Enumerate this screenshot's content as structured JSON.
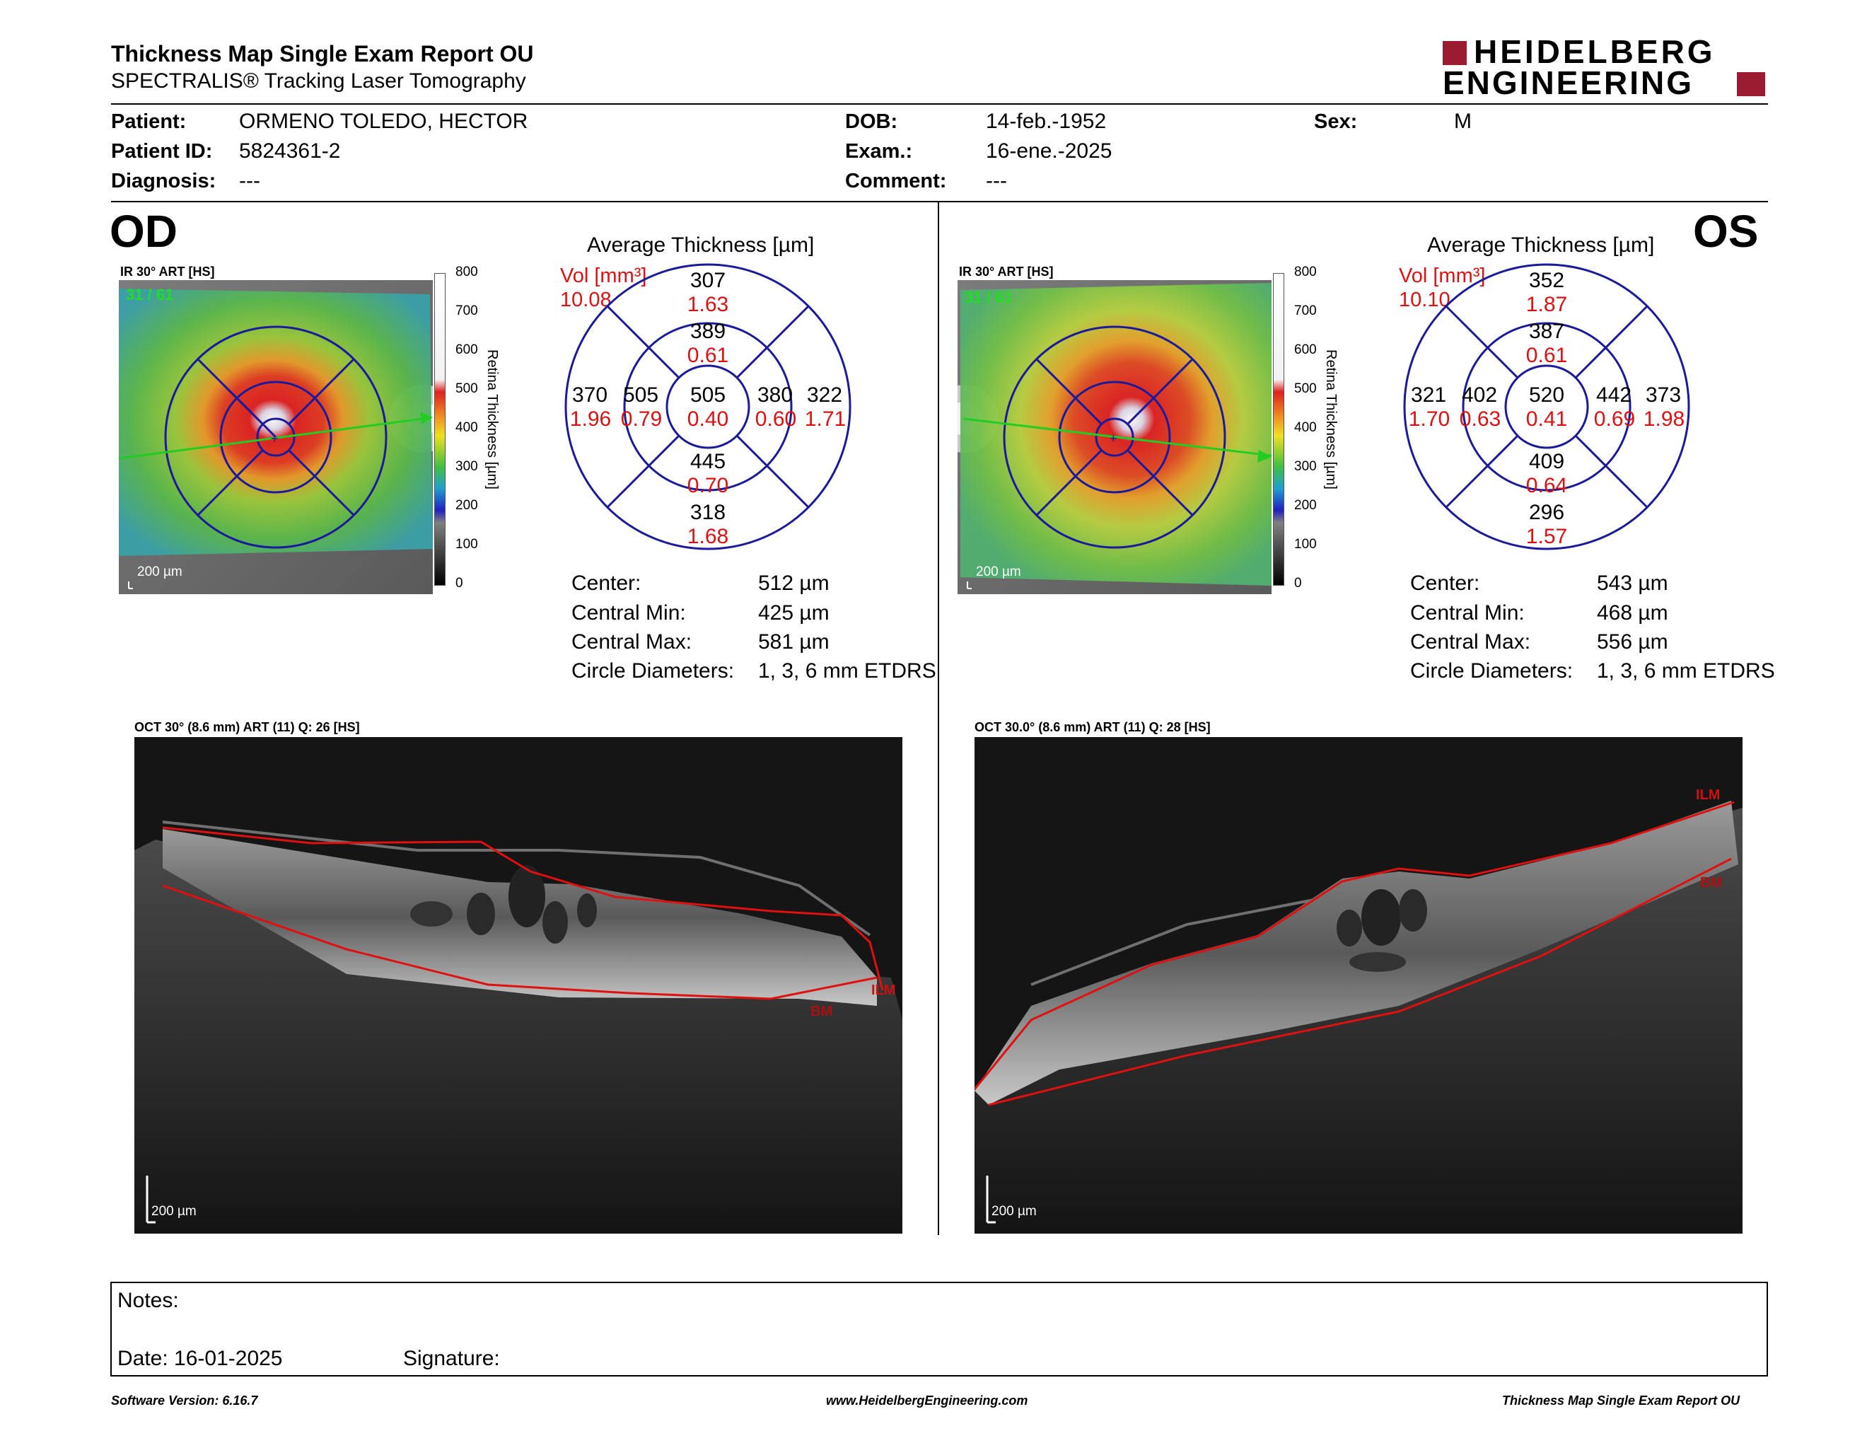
{
  "header": {
    "title": "Thickness Map Single Exam Report OU",
    "subtitle": "SPECTRALIS® Tracking Laser Tomography",
    "logo_line1": "HEIDELBERG",
    "logo_line2": "ENGINEERING",
    "logo_color": "#9b1b30"
  },
  "patient": {
    "patient_label": "Patient:",
    "patient_value": "ORMENO TOLEDO, HECTOR",
    "id_label": "Patient ID:",
    "id_value": "5824361-2",
    "diag_label": "Diagnosis:",
    "diag_value": "---",
    "dob_label": "DOB:",
    "dob_value": "14-feb.-1952",
    "exam_label": "Exam.:",
    "exam_value": "16-ene.-2025",
    "comment_label": "Comment:",
    "comment_value": "---",
    "sex_label": "Sex:",
    "sex_value": "M"
  },
  "od": {
    "eye": "OD",
    "ir_caption": "IR 30° ART [HS]",
    "art_count": "31 / 61",
    "scale": "200 µm",
    "avg_title": "Average Thickness [µm]",
    "vol_label": "Vol [mm³]",
    "vol_total": "10.08",
    "sectors": {
      "outer_sup": {
        "t": "307",
        "v": "1.63"
      },
      "inner_sup": {
        "t": "389",
        "v": "0.61"
      },
      "center": {
        "t": "505",
        "v": "0.40"
      },
      "inner_temp": {
        "t": "505",
        "v": "0.79"
      },
      "outer_temp": {
        "t": "370",
        "v": "1.96"
      },
      "inner_nasal": {
        "t": "380",
        "v": "0.60"
      },
      "outer_nasal": {
        "t": "322",
        "v": "1.71"
      },
      "inner_inf": {
        "t": "445",
        "v": "0.70"
      },
      "outer_inf": {
        "t": "318",
        "v": "1.68"
      }
    },
    "stats": [
      {
        "label": "Center:",
        "value": "512 µm"
      },
      {
        "label": "Central Min:",
        "value": "425 µm"
      },
      {
        "label": "Central Max:",
        "value": "581 µm"
      },
      {
        "label": "Circle Diameters:",
        "value": "1, 3, 6 mm ETDRS"
      }
    ],
    "oct_caption": "OCT 30° (8.6 mm) ART (11) Q: 26 [HS]",
    "oct_scale": "200 µm",
    "ilm": "ILM",
    "bm": "BM"
  },
  "os": {
    "eye": "OS",
    "ir_caption": "IR 30° ART [HS]",
    "art_count": "31 / 61",
    "scale": "200 µm",
    "avg_title": "Average Thickness [µm]",
    "vol_label": "Vol [mm³]",
    "vol_total": "10.10",
    "sectors": {
      "outer_sup": {
        "t": "352",
        "v": "1.87"
      },
      "inner_sup": {
        "t": "387",
        "v": "0.61"
      },
      "center": {
        "t": "520",
        "v": "0.41"
      },
      "inner_temp": {
        "t": "442",
        "v": "0.69"
      },
      "outer_temp": {
        "t": "373",
        "v": "1.98"
      },
      "inner_nasal": {
        "t": "402",
        "v": "0.63"
      },
      "outer_nasal": {
        "t": "321",
        "v": "1.70"
      },
      "inner_inf": {
        "t": "409",
        "v": "0.64"
      },
      "outer_inf": {
        "t": "296",
        "v": "1.57"
      }
    },
    "stats": [
      {
        "label": "Center:",
        "value": "543 µm"
      },
      {
        "label": "Central Min:",
        "value": "468 µm"
      },
      {
        "label": "Central Max:",
        "value": "556 µm"
      },
      {
        "label": "Circle Diameters:",
        "value": "1, 3, 6 mm ETDRS"
      }
    ],
    "oct_caption": "OCT 30.0° (8.6 mm) ART (11) Q: 28 [HS]",
    "oct_scale": "200 µm",
    "ilm": "ILM",
    "bm": "BM"
  },
  "colorbar": {
    "title": "Retina Thickness [µm]",
    "ticks": [
      "800",
      "700",
      "600",
      "500",
      "400",
      "300",
      "200",
      "100",
      "0"
    ]
  },
  "notes": {
    "notes_label": "Notes:",
    "date_label": "Date: 16-01-2025",
    "signature_label": "Signature:"
  },
  "footer": {
    "software": "Software Version: 6.16.7",
    "url": "www.HeidelbergEngineering.com",
    "report": "Thickness Map Single Exam Report OU"
  }
}
